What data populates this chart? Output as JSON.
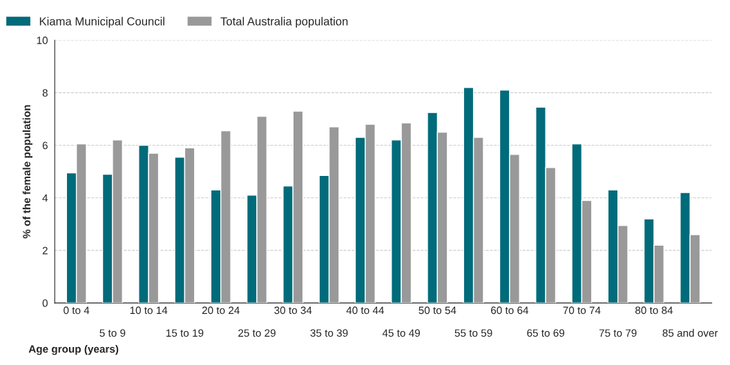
{
  "chart_data": {
    "type": "bar",
    "xlabel": "Age group (years)",
    "ylabel": "% of the female population",
    "categories": [
      "0 to 4",
      "5 to 9",
      "10 to 14",
      "15 to 19",
      "20 to 24",
      "25 to 29",
      "30 to 34",
      "35 to 39",
      "40 to 44",
      "45 to 49",
      "50 to 54",
      "55 to 59",
      "60 to 64",
      "65 to 69",
      "70 to 74",
      "75 to 79",
      "80 to 84",
      "85 and over"
    ],
    "series": [
      {
        "name": "Kiama Municipal Council",
        "color": "#006b7a",
        "values": [
          4.95,
          4.9,
          6.0,
          5.55,
          4.3,
          4.1,
          4.45,
          4.85,
          6.3,
          6.2,
          7.25,
          8.2,
          8.1,
          7.45,
          6.05,
          4.3,
          3.2,
          4.2
        ]
      },
      {
        "name": "Total Australia population",
        "color": "#999999",
        "values": [
          6.05,
          6.2,
          5.7,
          5.9,
          6.55,
          7.1,
          7.3,
          6.7,
          6.8,
          6.85,
          6.5,
          6.3,
          5.65,
          5.15,
          3.9,
          2.95,
          2.2,
          2.6
        ]
      }
    ],
    "ylim": [
      0,
      10
    ],
    "yticks": [
      0,
      2,
      4,
      6,
      8,
      10
    ],
    "grid": "y",
    "legend": "top left"
  }
}
